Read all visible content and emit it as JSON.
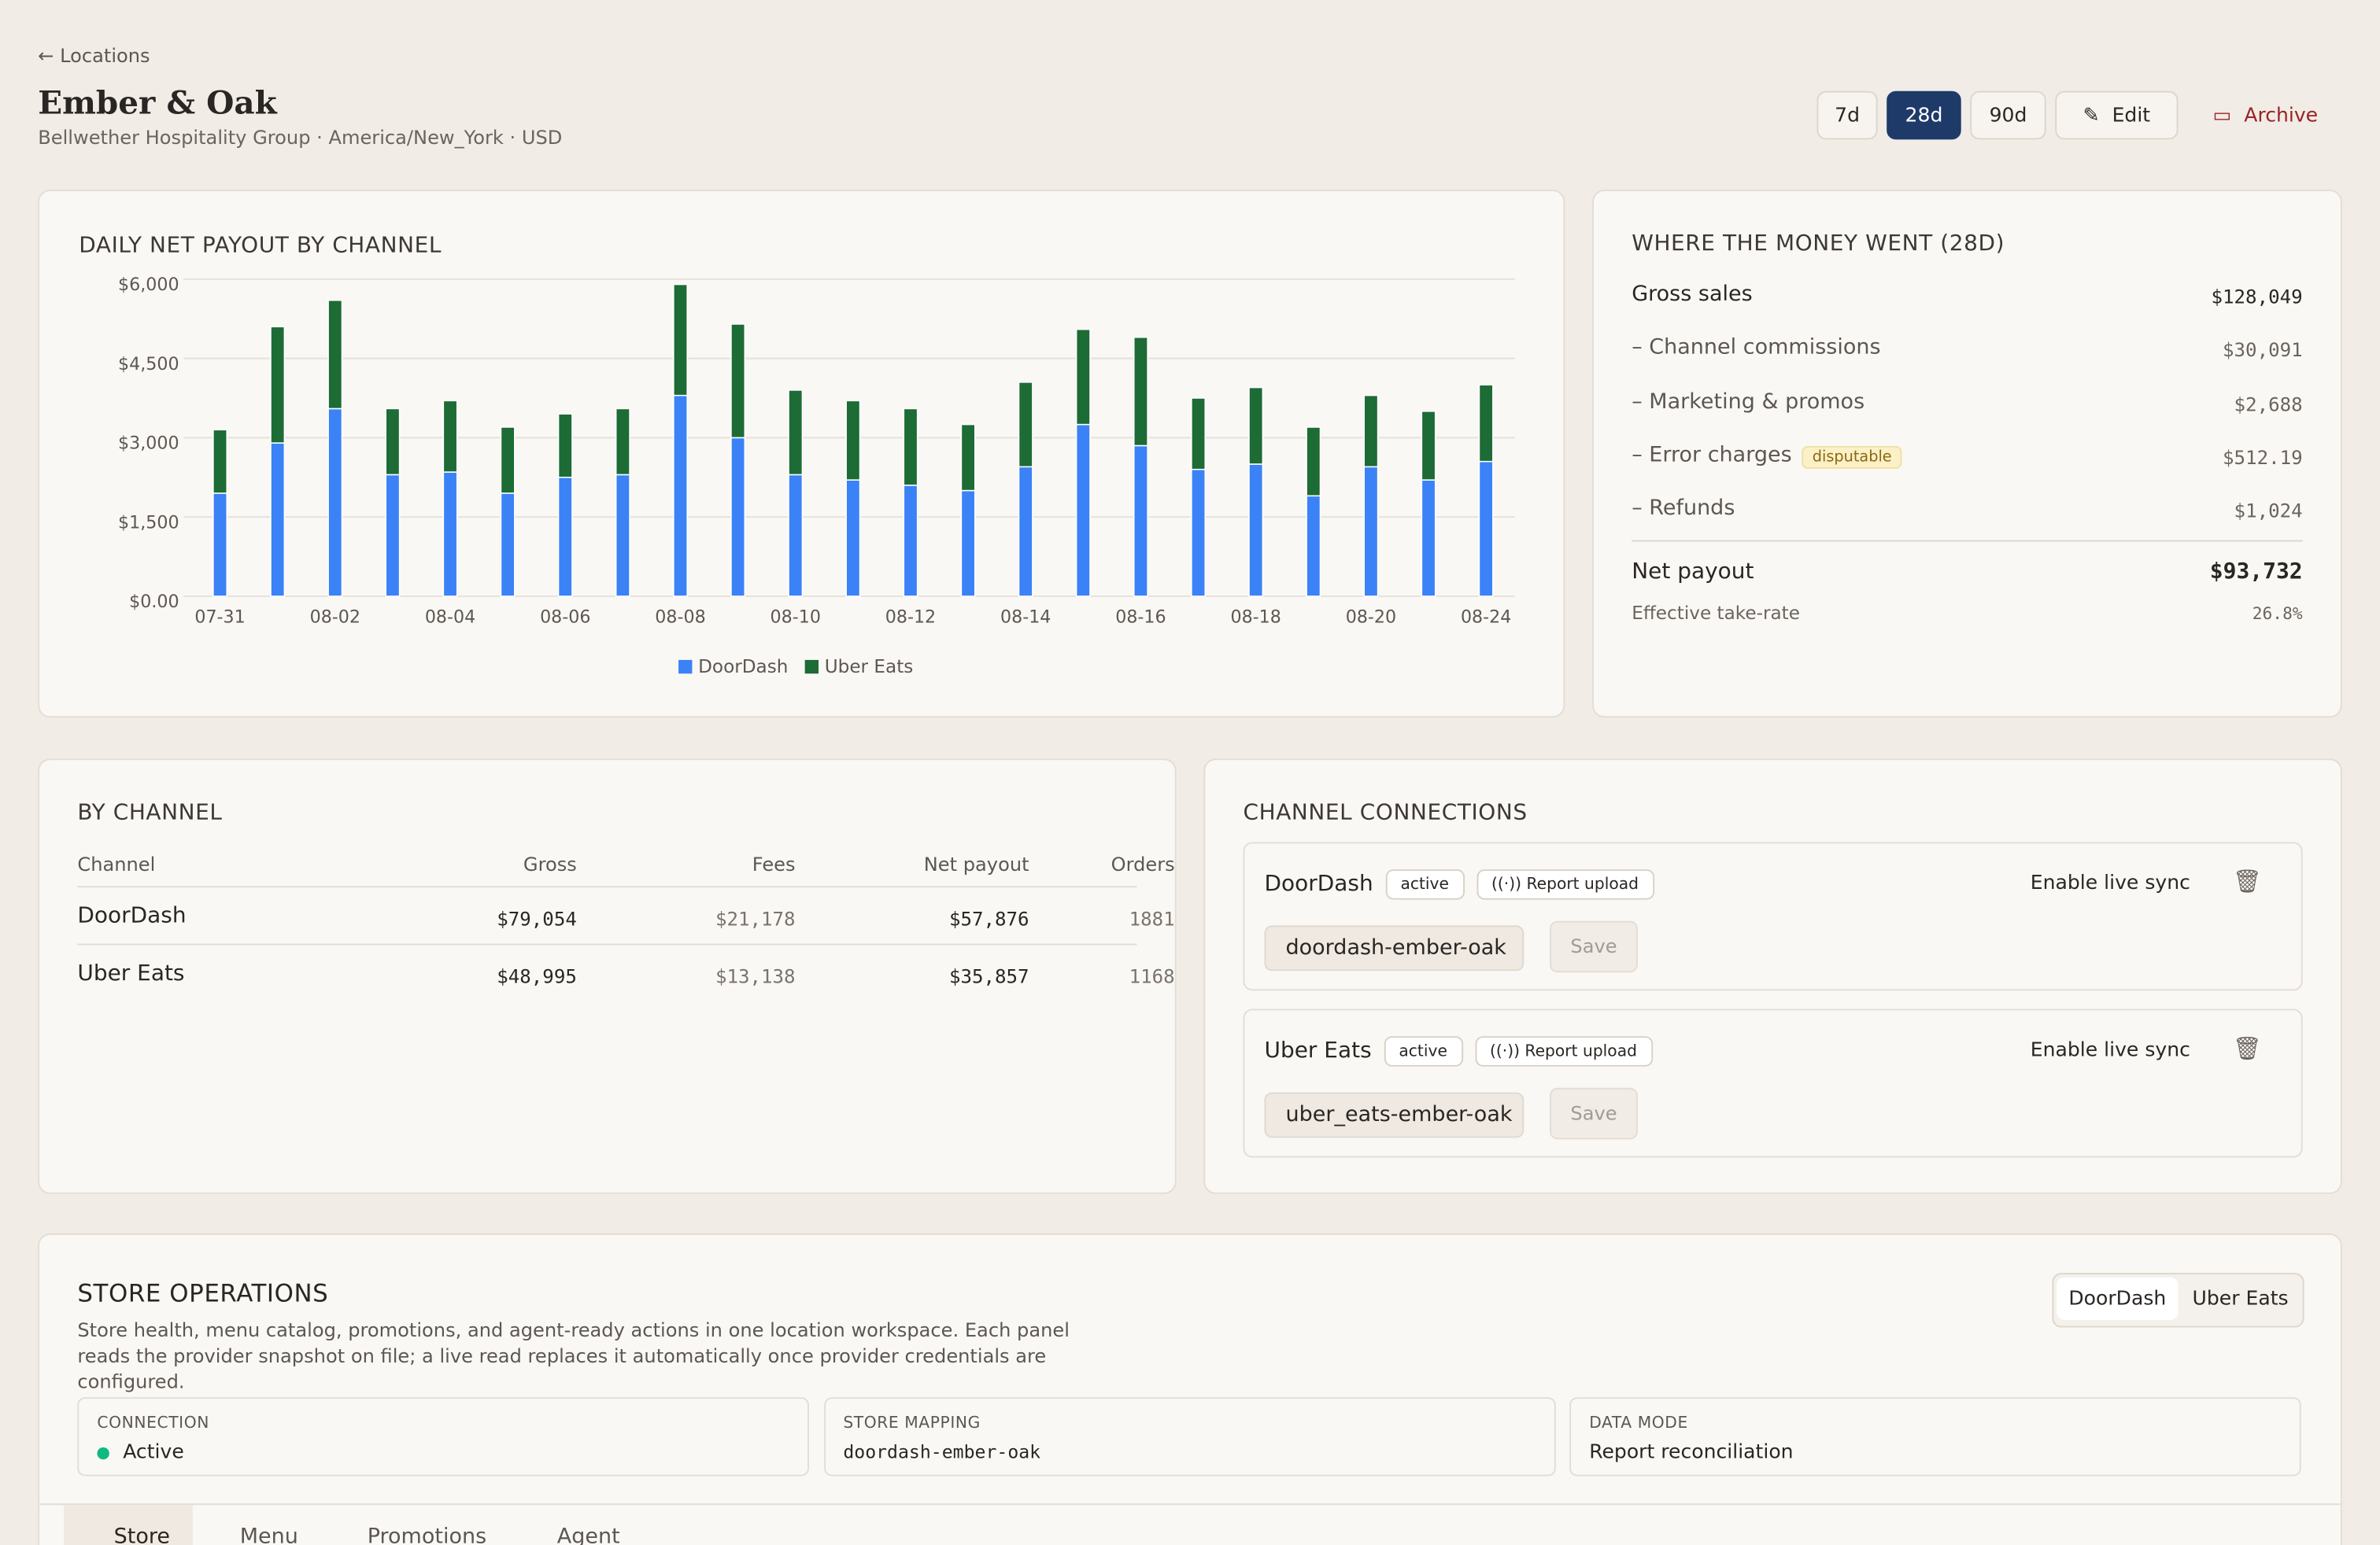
{
  "header": {
    "back": "Locations",
    "title": "Ember & Oak",
    "subtitle": "Bellwether Hospitality Group · America/New_York · USD",
    "ranges": [
      "7d",
      "28d",
      "90d"
    ],
    "edit": "Edit",
    "archive": "Archive"
  },
  "chart_data": {
    "type": "bar",
    "stacked": true,
    "title": "DAILY NET PAYOUT BY CHANNEL",
    "categories": [
      "07-31",
      null,
      "08-02",
      null,
      "08-04",
      null,
      "08-06",
      null,
      "08-08",
      null,
      "08-10",
      null,
      "08-12",
      null,
      "08-14",
      null,
      "08-16",
      null,
      "08-18",
      null,
      "08-20",
      null,
      "08-24"
    ],
    "series": [
      {
        "name": "DoorDash",
        "color": "#3b82f6",
        "values": [
          1950,
          2900,
          3550,
          2300,
          2350,
          1950,
          2250,
          2300,
          3800,
          3000,
          2300,
          2200,
          2100,
          2000,
          2450,
          3250,
          2850,
          2400,
          2500,
          1900,
          2450,
          2200,
          2550
        ]
      },
      {
        "name": "Uber Eats",
        "color": "#1d6b35",
        "values": [
          1200,
          2200,
          2050,
          1250,
          1350,
          1250,
          1200,
          1250,
          2100,
          2150,
          1600,
          1500,
          1450,
          1250,
          1600,
          1800,
          2050,
          1350,
          1450,
          1300,
          1350,
          1300,
          1450
        ]
      }
    ],
    "ylim": [
      0,
      6000
    ],
    "yticks": [
      {
        "value": 0,
        "label": "$0.00"
      },
      {
        "value": 1500,
        "label": "$1,500"
      },
      {
        "value": 3000,
        "label": "$3,000"
      },
      {
        "value": 4500,
        "label": "$4,500"
      },
      {
        "value": 6000,
        "label": "$6,000"
      }
    ],
    "grid": true,
    "legend": "bottom"
  },
  "money": {
    "title": "WHERE THE MONEY WENT (28D)",
    "rows": [
      {
        "label": "Gross sales",
        "value": "$128,049"
      },
      {
        "label": "– Channel commissions",
        "value": "$30,091"
      },
      {
        "label": "– Marketing & promos",
        "value": "$2,688"
      },
      {
        "label": "– Error charges",
        "badge": "disputable",
        "value": "$512.19"
      },
      {
        "label": "– Refunds",
        "value": "$1,024"
      }
    ],
    "net_label": "Net payout",
    "net_value": "$93,732",
    "rate_label": "Effective take-rate",
    "rate_value": "26.8%"
  },
  "by_channel": {
    "title": "BY CHANNEL",
    "columns": [
      "Channel",
      "Gross",
      "Fees",
      "Net payout",
      "Orders"
    ],
    "rows": [
      [
        "DoorDash",
        "$79,054",
        "$21,178",
        "$57,876",
        "1881"
      ],
      [
        "Uber Eats",
        "$48,995",
        "$13,138",
        "$35,857",
        "1168"
      ]
    ]
  },
  "connections": {
    "title": "CHANNEL CONNECTIONS",
    "items": [
      {
        "name": "DoorDash",
        "status": "active",
        "mode": "Report upload",
        "action": "Enable live sync",
        "slug": "doordash-ember-oak",
        "save": "Save"
      },
      {
        "name": "Uber Eats",
        "status": "active",
        "mode": "Report upload",
        "action": "Enable live sync",
        "slug": "uber_eats-ember-oak",
        "save": "Save"
      }
    ]
  },
  "operations": {
    "title": "STORE OPERATIONS",
    "description": "Store health, menu catalog, promotions, and agent-ready actions in one location workspace. Each panel reads the provider snapshot on file; a live read replaces it automatically once provider credentials are configured.",
    "toggle": [
      "DoorDash",
      "Uber Eats"
    ],
    "cards": [
      {
        "label": "CONNECTION",
        "value": "Active"
      },
      {
        "label": "STORE MAPPING",
        "value": "doordash-ember-oak"
      },
      {
        "label": "DATA MODE",
        "value": "Report reconciliation"
      }
    ],
    "tabs": [
      "Store",
      "Menu",
      "Promotions",
      "Agent"
    ]
  }
}
